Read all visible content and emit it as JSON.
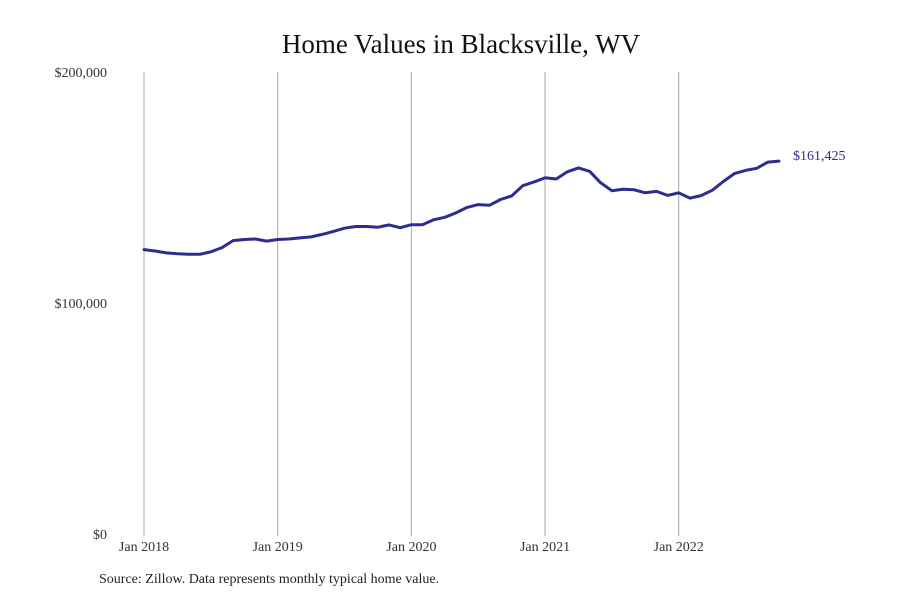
{
  "chart_data": {
    "type": "line",
    "title": "Home Values in Blacksville, WV",
    "xlabel": "",
    "ylabel": "",
    "ylim": [
      0,
      200000
    ],
    "y_ticks": [
      {
        "value": 0,
        "label": "$0"
      },
      {
        "value": 100000,
        "label": "$100,000"
      },
      {
        "value": 200000,
        "label": "$200,000"
      }
    ],
    "x_ticks": [
      {
        "value": "2018-01",
        "label": "Jan 2018"
      },
      {
        "value": "2019-01",
        "label": "Jan 2019"
      },
      {
        "value": "2020-01",
        "label": "Jan 2020"
      },
      {
        "value": "2021-01",
        "label": "Jan 2021"
      },
      {
        "value": "2022-01",
        "label": "Jan 2022"
      }
    ],
    "grid": {
      "vertical": true,
      "horizontal": false
    },
    "series": [
      {
        "color": "#2e2d8f",
        "end_label": "$161,425",
        "x": [
          "2018-01",
          "2018-02",
          "2018-03",
          "2018-04",
          "2018-05",
          "2018-06",
          "2018-07",
          "2018-08",
          "2018-09",
          "2018-10",
          "2018-11",
          "2018-12",
          "2019-01",
          "2019-02",
          "2019-03",
          "2019-04",
          "2019-05",
          "2019-06",
          "2019-07",
          "2019-08",
          "2019-09",
          "2019-10",
          "2019-11",
          "2019-12",
          "2020-01",
          "2020-02",
          "2020-03",
          "2020-04",
          "2020-05",
          "2020-06",
          "2020-07",
          "2020-08",
          "2020-09",
          "2020-10",
          "2020-11",
          "2020-12",
          "2021-01",
          "2021-02",
          "2021-03",
          "2021-04",
          "2021-05",
          "2021-06",
          "2021-07",
          "2021-08",
          "2021-09",
          "2021-10",
          "2021-11",
          "2021-12",
          "2022-01",
          "2022-02",
          "2022-03",
          "2022-04",
          "2022-05",
          "2022-06",
          "2022-07",
          "2022-08",
          "2022-09",
          "2022-10"
        ],
        "values": [
          123100,
          122500,
          121700,
          121300,
          121100,
          121100,
          122100,
          124000,
          127000,
          127500,
          127700,
          126800,
          127500,
          127700,
          128200,
          128600,
          129700,
          131000,
          132400,
          133100,
          133100,
          132800,
          133800,
          132600,
          133900,
          133900,
          136000,
          137100,
          139000,
          141400,
          142600,
          142300,
          144800,
          146300,
          150800,
          152400,
          154200,
          153700,
          156800,
          158500,
          157000,
          152000,
          148600,
          149200,
          149000,
          147700,
          148300,
          146600,
          147700,
          145400,
          146500,
          148800,
          152600,
          156000,
          157400,
          158300,
          161000,
          161425
        ]
      }
    ]
  },
  "source_note": "Source: Zillow. Data represents monthly typical home value."
}
